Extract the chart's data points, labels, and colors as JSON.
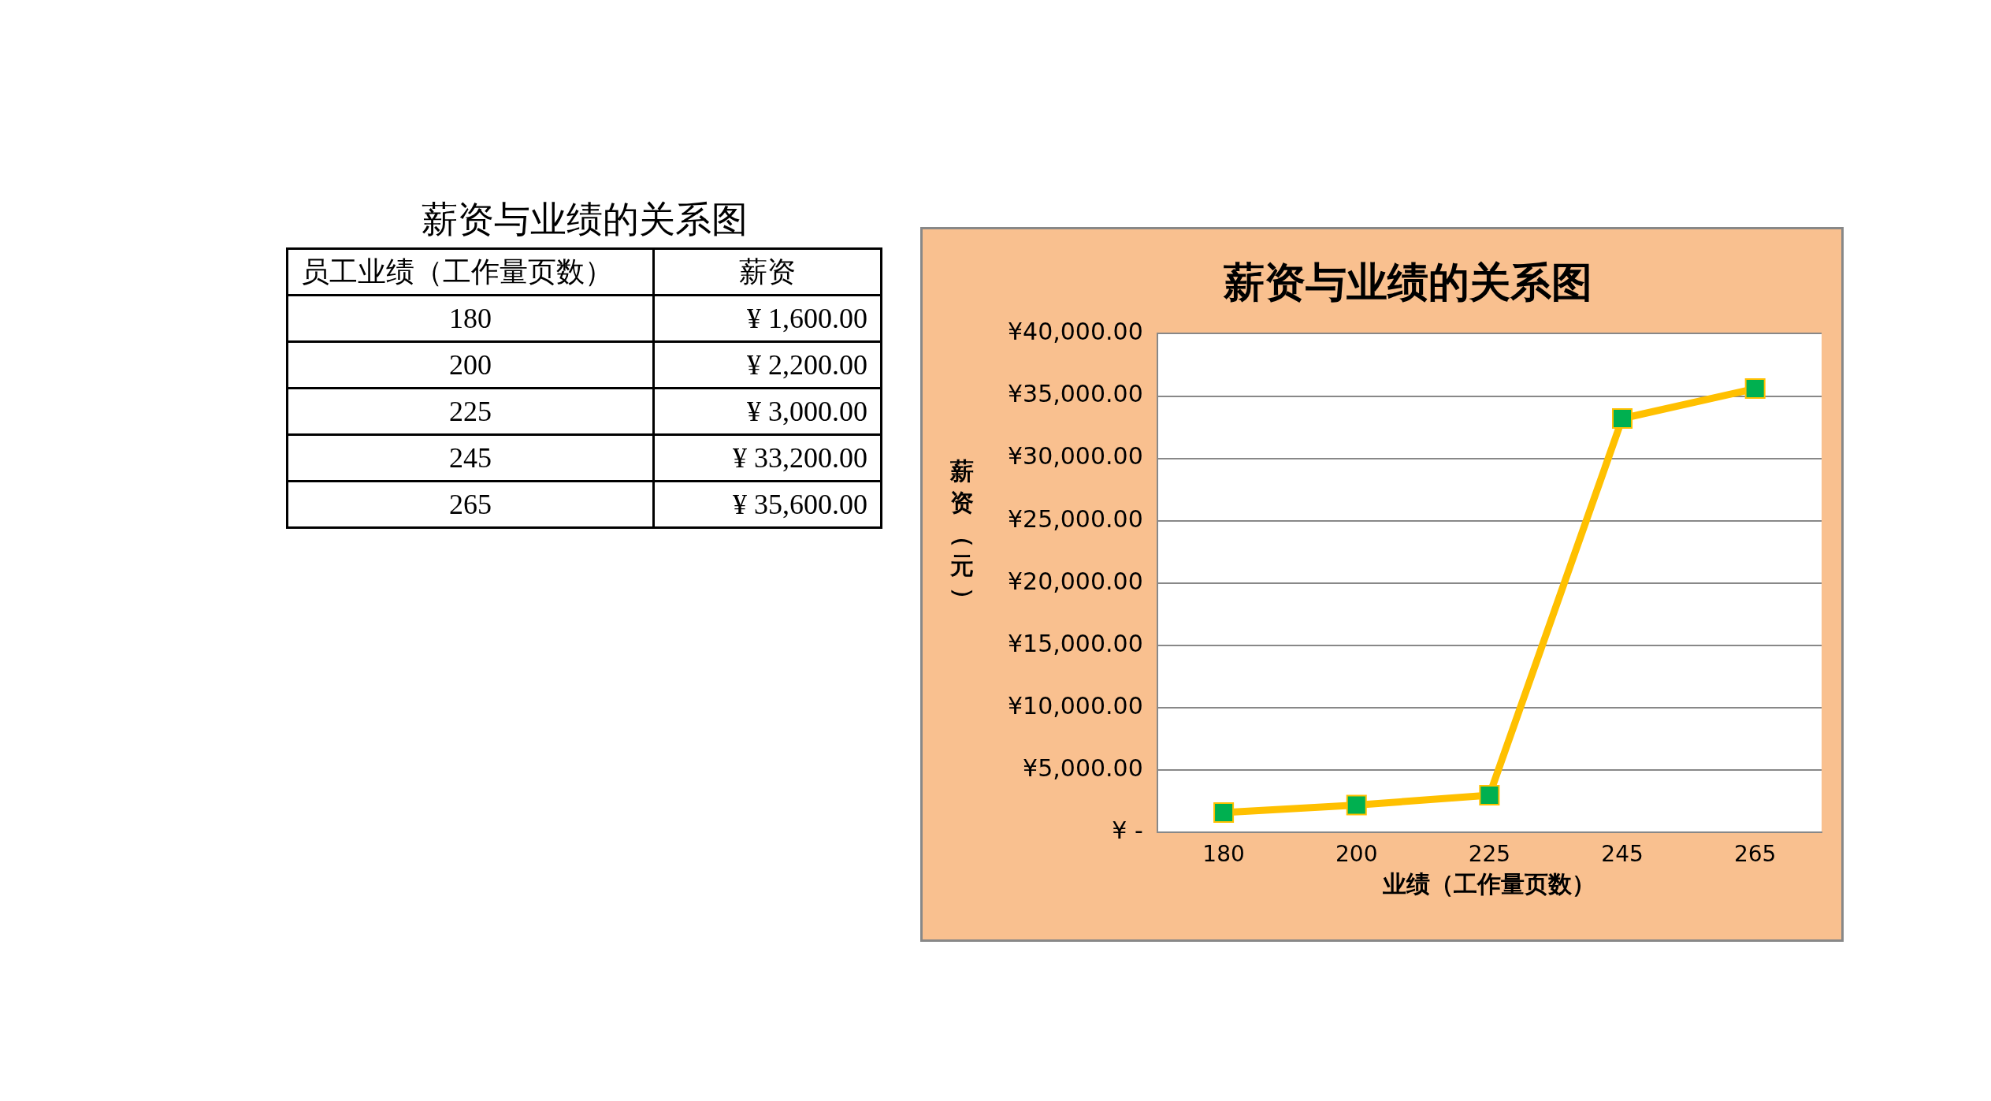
{
  "chart_data": {
    "type": "line",
    "title": "薪资与业绩的关系图",
    "xlabel": "业绩（工作量页数）",
    "ylabel": "薪资（元）",
    "annotations": [
      "薪资与业绩的关系图",
      "员工业绩（工作量页数）",
      "薪资"
    ],
    "categories": [
      "180",
      "200",
      "225",
      "245",
      "265"
    ],
    "series": [
      {
        "color": "#ffc000",
        "values": [
          1600,
          2200,
          3000,
          33200,
          35600
        ]
      }
    ],
    "value_labels": [
      "¥ 1,600.00",
      "¥ 2,200.00",
      "¥ 3,000.00",
      "¥ 33,200.00",
      "¥ 35,600.00"
    ],
    "ylim": [
      0,
      40000
    ],
    "yticks": [
      {
        "value": 0,
        "label": "¥ -"
      },
      {
        "value": 5000,
        "label": "¥5,000.00"
      },
      {
        "value": 10000,
        "label": "¥10,000.00"
      },
      {
        "value": 15000,
        "label": "¥15,000.00"
      },
      {
        "value": 20000,
        "label": "¥20,000.00"
      },
      {
        "value": 25000,
        "label": "¥25,000.00"
      },
      {
        "value": 30000,
        "label": "¥30,000.00"
      },
      {
        "value": 35000,
        "label": "¥35,000.00"
      },
      {
        "value": 40000,
        "label": "¥40,000.00"
      }
    ],
    "grid": "y",
    "legend": false,
    "marker": "square",
    "line_style": "solid"
  }
}
